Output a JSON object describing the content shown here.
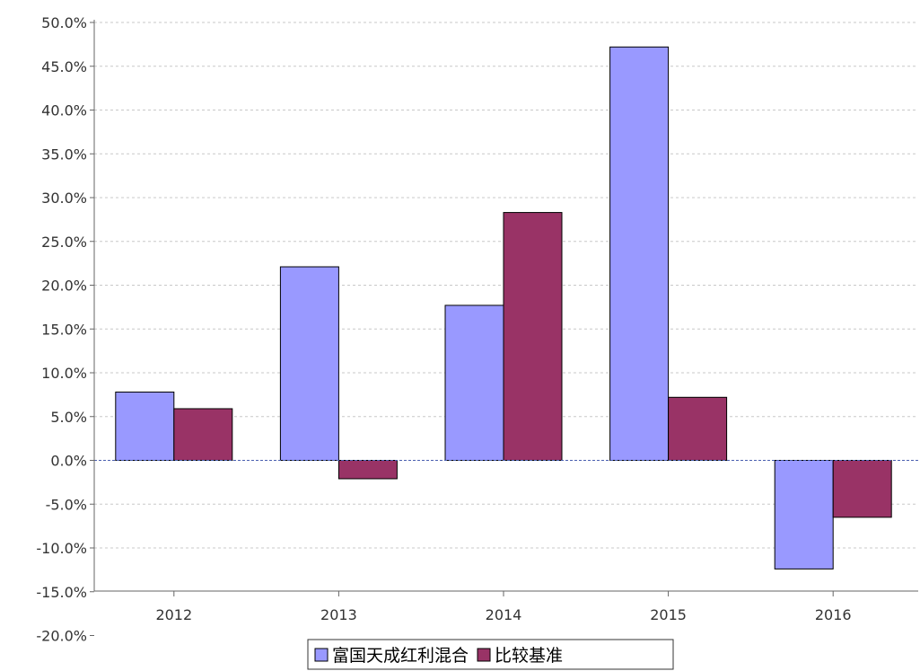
{
  "chart_data": {
    "type": "bar",
    "title": "",
    "xlabel": "",
    "ylabel": "",
    "categories": [
      "2012",
      "2013",
      "2014",
      "2015",
      "2016"
    ],
    "series": [
      {
        "name": "富国天成红利混合",
        "color": "#9999ff",
        "values": [
          7.8,
          22.1,
          17.7,
          47.2,
          -12.4
        ]
      },
      {
        "name": "比较基准",
        "color": "#993366",
        "values": [
          5.9,
          -2.1,
          28.3,
          7.2,
          -6.5
        ]
      }
    ],
    "ylim": [
      -20,
      50
    ],
    "yticks": [
      50,
      45,
      40,
      35,
      30,
      25,
      20,
      15,
      10,
      5,
      0,
      -5,
      -10,
      -15,
      -20
    ],
    "ytick_labels": [
      "50.0%",
      "45.0%",
      "40.0%",
      "35.0%",
      "30.0%",
      "25.0%",
      "20.0%",
      "15.0%",
      "10.0%",
      "5.0%",
      "0.0%",
      "-5.0%",
      "-10.0%",
      "-15.0%",
      "-20.0%"
    ],
    "grid": true,
    "legend_position": "bottom-center"
  }
}
